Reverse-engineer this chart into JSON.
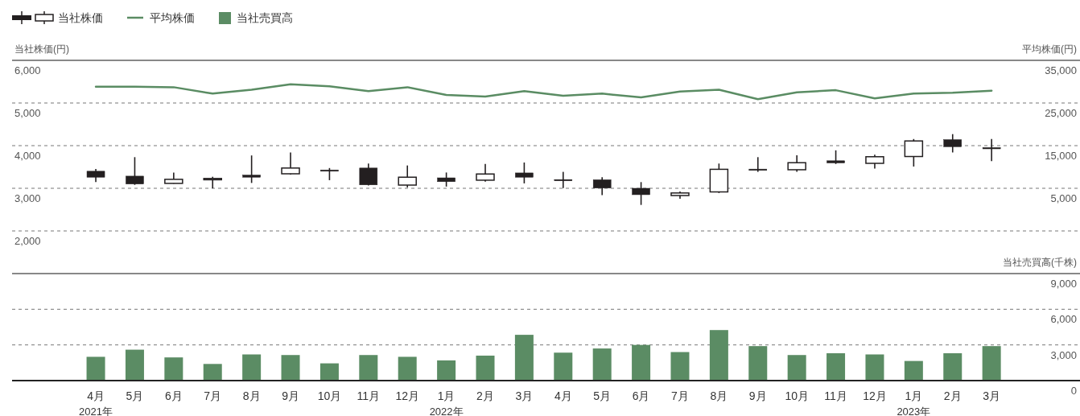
{
  "chart_data": [
    {
      "type": "candlestick",
      "categories": [
        null,
        null,
        null,
        null,
        null,
        null,
        null,
        null,
        null,
        null,
        null,
        null,
        null,
        null,
        null,
        null,
        null,
        null,
        null,
        null,
        null,
        null,
        null,
        null
      ],
      "ylabel": "当社株価(円)",
      "y2label": "平均株価(円)",
      "ylim": [
        2000,
        6000
      ],
      "yticks": [
        {
          "value": 2000,
          "label": "2,000"
        },
        {
          "value": 3000,
          "label": "3,000"
        },
        {
          "value": 4000,
          "label": "4,000"
        },
        {
          "value": 5000,
          "label": "5,000"
        },
        {
          "value": 6000,
          "label": "6,000"
        }
      ],
      "y2lim": [
        -5000,
        35000
      ],
      "y2ticks": [
        {
          "value": 5000,
          "label": "5,000"
        },
        {
          "value": 15000,
          "label": "15,000"
        },
        {
          "value": 25000,
          "label": "25,000"
        },
        {
          "value": 35000,
          "label": "35,000"
        }
      ],
      "grid": "y",
      "legend": "top left",
      "tick_labels": "y",
      "series": [
        {
          "name": "当社株価",
          "type": "candlestick",
          "color": "#231f20",
          "ohlc": [
            [
              3400,
              3455,
              3145,
              3260
            ],
            [
              3285,
              3730,
              3080,
              3100
            ],
            [
              3115,
              3370,
              3110,
              3210
            ],
            [
              3225,
              3270,
              3000,
              3230
            ],
            [
              3310,
              3770,
              3125,
              3260
            ],
            [
              3340,
              3840,
              3320,
              3475
            ],
            [
              3430,
              3475,
              3190,
              3425
            ],
            [
              3475,
              3580,
              3065,
              3080
            ],
            [
              3075,
              3535,
              3020,
              3260
            ],
            [
              3245,
              3370,
              3040,
              3155
            ],
            [
              3190,
              3570,
              3155,
              3335
            ],
            [
              3360,
              3605,
              3115,
              3260
            ],
            [
              3205,
              3385,
              3005,
              3200
            ],
            [
              3200,
              3260,
              2840,
              3005
            ],
            [
              3000,
              3145,
              2610,
              2850
            ],
            [
              2830,
              2925,
              2755,
              2890
            ],
            [
              2915,
              3580,
              2890,
              3445
            ],
            [
              3450,
              3730,
              3385,
              3445
            ],
            [
              3435,
              3775,
              3385,
              3600
            ],
            [
              3645,
              3890,
              3570,
              3595
            ],
            [
              3585,
              3790,
              3460,
              3740
            ],
            [
              3745,
              4155,
              3510,
              4110
            ],
            [
              4140,
              4270,
              3840,
              3975
            ],
            [
              3955,
              4155,
              3635,
              3950
            ]
          ]
        },
        {
          "name": "平均株価",
          "type": "line",
          "axis": "y2",
          "color": "#5a8c63",
          "values": [
            28800,
            28800,
            28700,
            27200,
            28100,
            29400,
            28900,
            27800,
            28700,
            26900,
            26500,
            27800,
            26700,
            27200,
            26300,
            27700,
            28100,
            25900,
            27500,
            28000,
            26100,
            27200,
            27400,
            27900
          ]
        }
      ]
    },
    {
      "type": "bar",
      "categories": [
        "4月\n2021年",
        "5月",
        "6月",
        "7月",
        "8月",
        "9月",
        "10月",
        "11月",
        "12月",
        "1月\n2022年",
        "2月",
        "3月",
        "4月",
        "5月",
        "6月",
        "7月",
        "8月",
        "9月",
        "10月",
        "11月",
        "12月",
        "1月\n2023年",
        "2月",
        "3月"
      ],
      "y2label": "当社売買高(千株)",
      "y2lim": [
        0,
        9000
      ],
      "y2ticks": [
        0,
        {
          "value": 3000,
          "label": "3,000"
        },
        {
          "value": 6000,
          "label": "6,000"
        },
        {
          "value": 9000,
          "label": "9,000"
        }
      ],
      "grid": "y",
      "legend": "top left",
      "series": [
        {
          "name": "当社売買高",
          "type": "bar",
          "axis": "y2",
          "color": "#5b8c64",
          "values": [
            2000,
            2600,
            1950,
            1400,
            2200,
            2150,
            1450,
            2150,
            2000,
            1700,
            2100,
            3850,
            2350,
            2700,
            3000,
            2400,
            4250,
            2900,
            2150,
            2300,
            2200,
            1650,
            2300,
            2900
          ]
        }
      ]
    }
  ]
}
